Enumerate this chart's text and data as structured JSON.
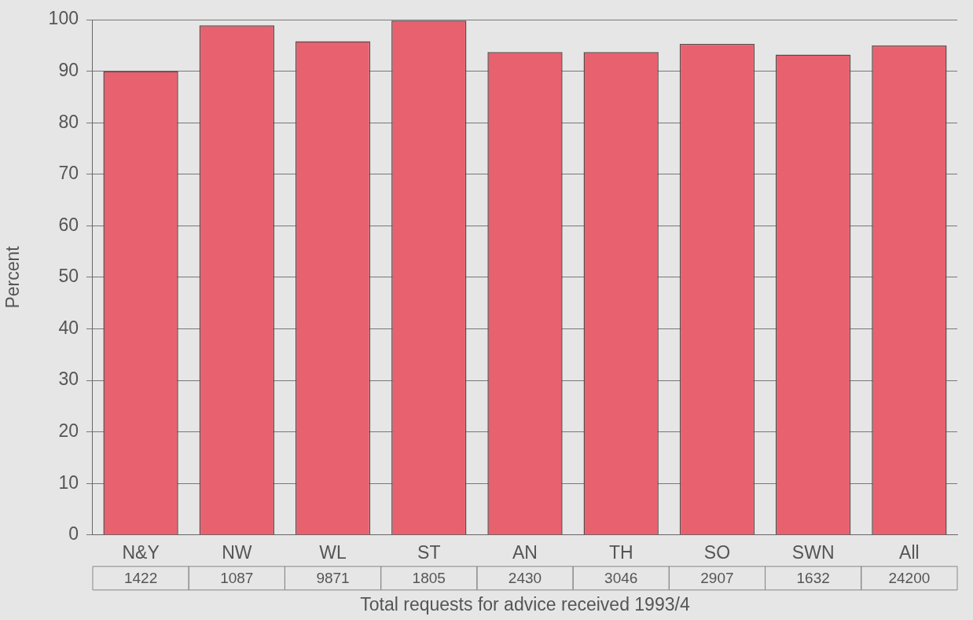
{
  "chart_data": {
    "type": "bar",
    "ylabel": "Percent",
    "xlabel": "Total requests for advice received 1993/4",
    "categories": [
      "N&Y",
      "NW",
      "WL",
      "ST",
      "AN",
      "TH",
      "SO",
      "SWN",
      "All"
    ],
    "values": [
      90.0,
      98.9,
      95.8,
      99.8,
      93.7,
      93.7,
      95.3,
      93.2,
      95.0
    ],
    "color": "#e8616f",
    "ylim": [
      0,
      100
    ],
    "yticks": [
      0,
      10,
      20,
      30,
      40,
      50,
      60,
      70,
      80,
      90,
      100
    ],
    "grid": "y",
    "legend": false,
    "annotations": [
      "1422",
      "1087",
      "9871",
      "1805",
      "2430",
      "3046",
      "2907",
      "1632",
      "24200"
    ]
  }
}
